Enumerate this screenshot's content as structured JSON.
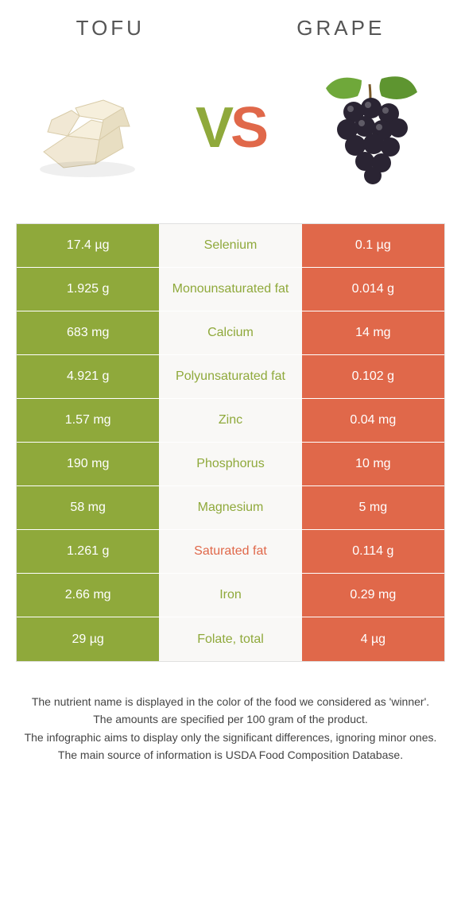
{
  "colors": {
    "left": "#8fa93b",
    "right": "#e0684a",
    "mid_bg": "#f9f8f6",
    "vs_v": "#8fa93b",
    "vs_s": "#e0684a",
    "title": "#555555"
  },
  "header": {
    "left_title": "TOFU",
    "right_title": "GRAPE"
  },
  "vs": {
    "v": "V",
    "s": "S"
  },
  "rows": [
    {
      "left": "17.4 µg",
      "mid": "Selenium",
      "right": "0.1 µg",
      "winner": "left"
    },
    {
      "left": "1.925 g",
      "mid": "Monounsaturated fat",
      "right": "0.014 g",
      "winner": "left"
    },
    {
      "left": "683 mg",
      "mid": "Calcium",
      "right": "14 mg",
      "winner": "left"
    },
    {
      "left": "4.921 g",
      "mid": "Polyunsaturated fat",
      "right": "0.102 g",
      "winner": "left"
    },
    {
      "left": "1.57 mg",
      "mid": "Zinc",
      "right": "0.04 mg",
      "winner": "left"
    },
    {
      "left": "190 mg",
      "mid": "Phosphorus",
      "right": "10 mg",
      "winner": "left"
    },
    {
      "left": "58 mg",
      "mid": "Magnesium",
      "right": "5 mg",
      "winner": "left"
    },
    {
      "left": "1.261 g",
      "mid": "Saturated fat",
      "right": "0.114 g",
      "winner": "right"
    },
    {
      "left": "2.66 mg",
      "mid": "Iron",
      "right": "0.29 mg",
      "winner": "left"
    },
    {
      "left": "29 µg",
      "mid": "Folate, total",
      "right": "4 µg",
      "winner": "left"
    }
  ],
  "footer": {
    "l1": "The nutrient name is displayed in the color of the food we considered as 'winner'.",
    "l2": "The amounts are specified per 100 gram of the product.",
    "l3": "The infographic aims to display only the significant differences, ignoring minor ones.",
    "l4": "The main source of information is USDA Food Composition Database."
  }
}
